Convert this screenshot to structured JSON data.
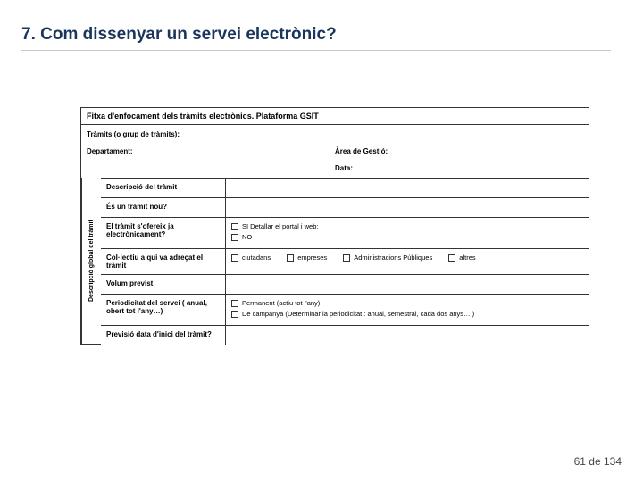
{
  "slide": {
    "title": "7. Com dissenyar un servei electrònic?"
  },
  "form": {
    "header": "Fitxa d'enfocament dels tràmits electrònics. Plataforma GSIT",
    "top": {
      "tramits": "Tràmits (o grup de tràmits):",
      "departament": "Departament:",
      "area": "Àrea de Gestió:",
      "data": "Data:"
    },
    "sideLabel": "Descripció global del tràmit",
    "rows": {
      "descripcio": "Descripció del tràmit",
      "nou": "És un tràmit nou?",
      "ofereix": "El tràmit s'ofereix ja electrònicament?",
      "ofereix_opts": {
        "si": "SI   Detallar el portal i web:",
        "no": "NO"
      },
      "collectiu": "Col·lectiu a qui va adreçat el tràmit",
      "collectiu_opts": {
        "ciutadans": "ciutadans",
        "empreses": "empreses",
        "admin": "Administracions Públiques",
        "altres": "altres"
      },
      "volum": "Volum previst",
      "periodicitat": "Periodicitat del servei ( anual, obert tot l'any…)",
      "periodicitat_opts": {
        "permanent": "Permanent (actiu tot l'any)",
        "campanya": "De campanya (Determinar la periodicitat : anual, semestral, cada dos anys… )"
      },
      "previsio": "Previsió data d'inici del tràmit?"
    }
  },
  "footer": {
    "page": "61 de 134"
  },
  "style": {
    "title_color": "#1a365d",
    "border_color": "#333333",
    "bg": "#ffffff"
  }
}
